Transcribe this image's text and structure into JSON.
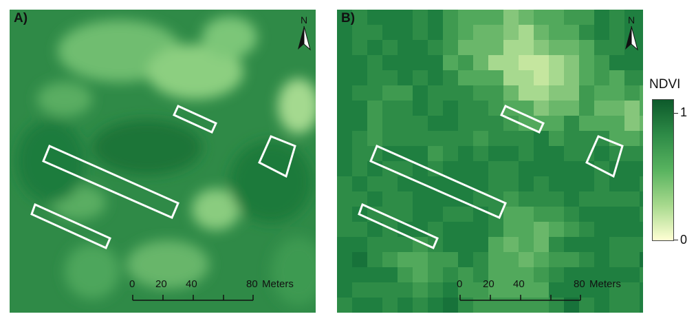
{
  "panels": [
    {
      "label": "A)",
      "style": "smooth"
    },
    {
      "label": "B)",
      "style": "pixel"
    }
  ],
  "north_label": "N",
  "scalebar": {
    "ticks": [
      "0",
      "20",
      "40",
      "80"
    ],
    "unit": "Meters"
  },
  "legend": {
    "title": "NDVI",
    "max_label": "1",
    "min_label": "0",
    "colors": [
      "#0d5a2b",
      "#2e8b47",
      "#58b35f",
      "#a7d98d",
      "#ffffd4"
    ]
  }
}
